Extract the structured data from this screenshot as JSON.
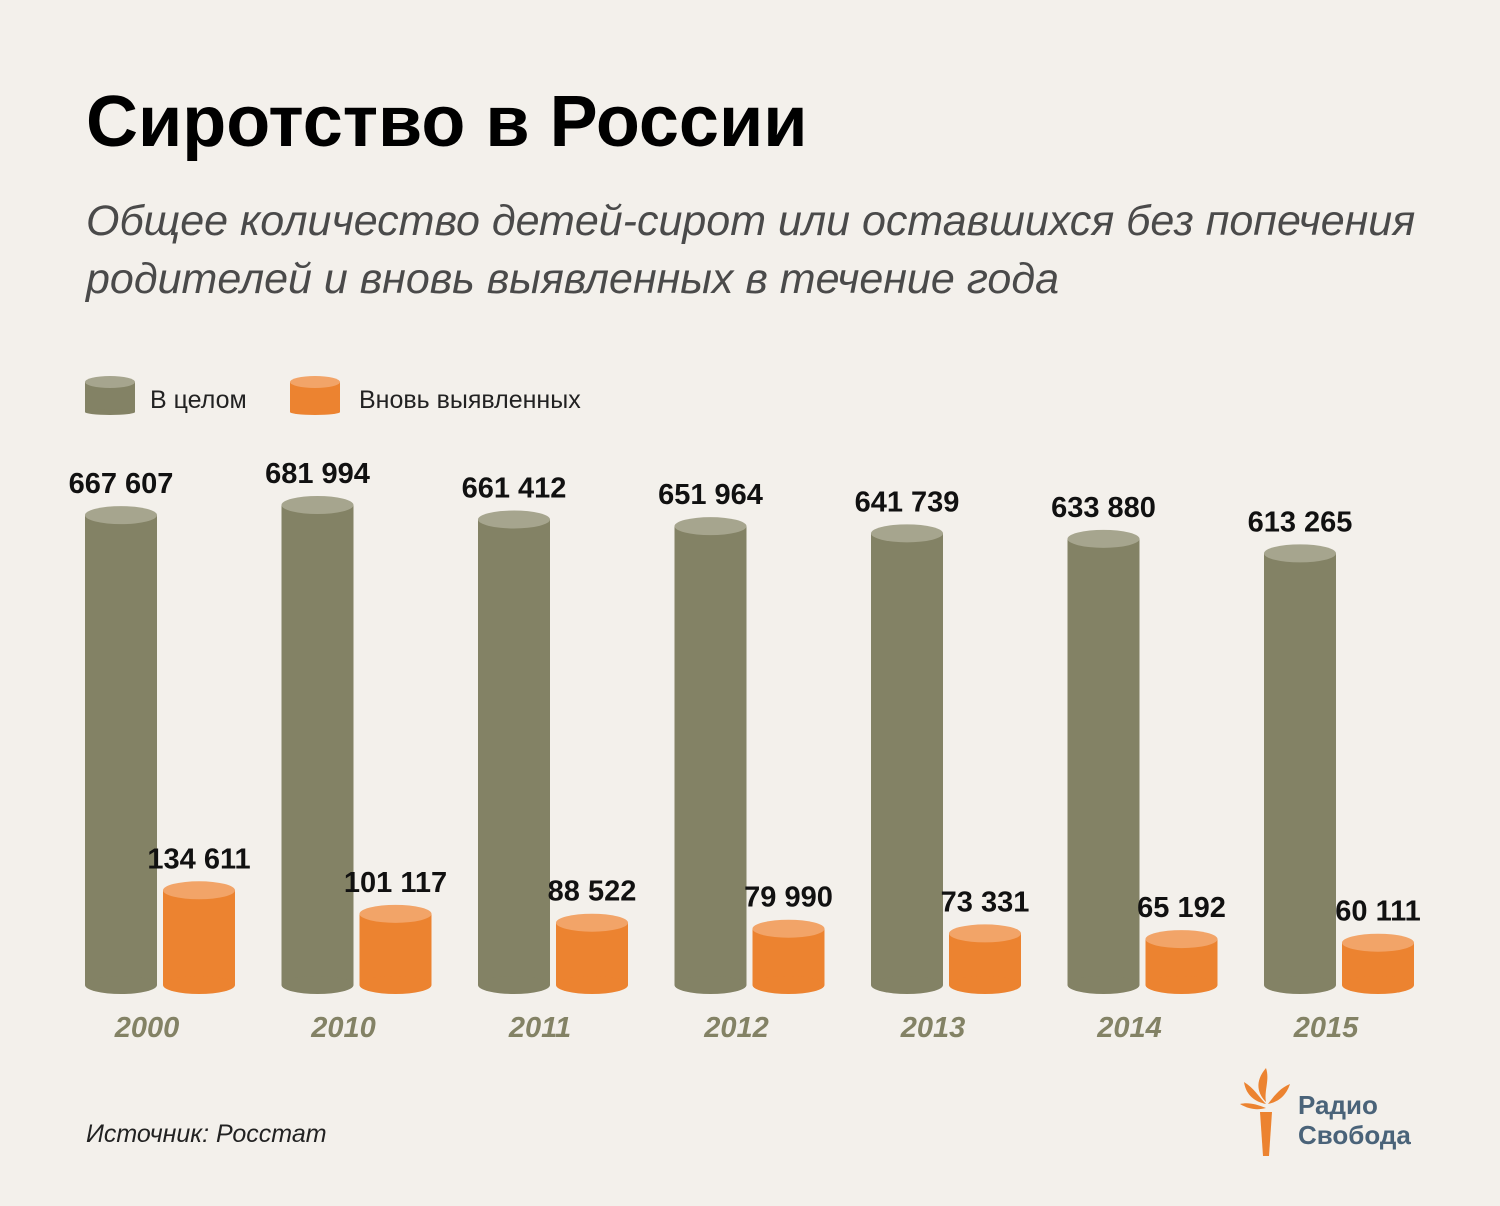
{
  "title": "Сиротство в России",
  "subtitle": "Общее количество детей-сирот или оставшихся без попечения родителей и вновь выявленных в течение года",
  "legend": {
    "total_label": "В целом",
    "new_label": "Вновь выявленных"
  },
  "colors": {
    "total": "#838265",
    "total_top": "#a6a58e",
    "new": "#ec8330",
    "new_top": "#f2a468",
    "background": "#f3f0eb",
    "year_label": "#838265"
  },
  "chart_data": {
    "type": "bar",
    "title": "Сиротство в России",
    "categories": [
      "2000",
      "2010",
      "2011",
      "2012",
      "2013",
      "2014",
      "2015"
    ],
    "series": [
      {
        "name": "В целом",
        "values": [
          667607,
          681994,
          661412,
          651964,
          641739,
          633880,
          613265
        ],
        "labels": [
          "667 607",
          "681 994",
          "661 412",
          "651 964",
          "641 739",
          "633 880",
          "613 265"
        ]
      },
      {
        "name": "Вновь выявленных",
        "values": [
          134611,
          101117,
          88522,
          79990,
          73331,
          65192,
          60111
        ],
        "labels": [
          "134 611",
          "101 117",
          "88 522",
          "79 990",
          "73 331",
          "65 192",
          "60 111"
        ]
      }
    ],
    "ylim": [
      0,
      681994
    ],
    "xlabel": "",
    "ylabel": "",
    "grid": false,
    "legend_position": "top-left"
  },
  "source": "Источник: Росстат",
  "logo": {
    "line1": "Радио",
    "line2": "Свобода"
  }
}
